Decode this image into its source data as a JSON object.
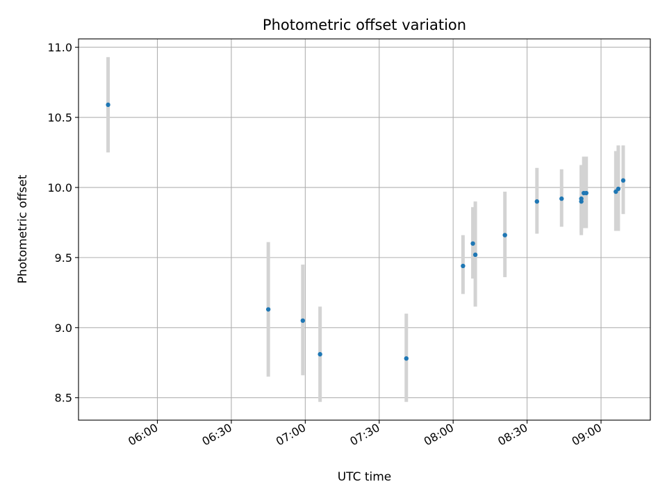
{
  "chart_data": {
    "type": "scatter",
    "title": "Photometric offset variation",
    "xlabel": "UTC time",
    "ylabel": "Photometric offset",
    "x_format": "HH:MM",
    "xlim": [
      "05:28",
      "09:20"
    ],
    "ylim": [
      8.34,
      11.06
    ],
    "x_ticks": [
      "06:00",
      "06:30",
      "07:00",
      "07:30",
      "08:00",
      "08:30",
      "09:00"
    ],
    "y_ticks": [
      "8.5",
      "9.0",
      "9.5",
      "10.0",
      "10.5",
      "11.0"
    ],
    "grid": true,
    "colors": {
      "marker": "#1f77b4",
      "errorbar": "#d3d3d3",
      "grid": "#b0b0b0"
    },
    "points": [
      {
        "t": "05:40",
        "y": 10.59,
        "lo": 10.25,
        "hi": 10.93
      },
      {
        "t": "06:45",
        "y": 9.13,
        "lo": 8.65,
        "hi": 9.61
      },
      {
        "t": "06:59",
        "y": 9.05,
        "lo": 8.66,
        "hi": 9.45
      },
      {
        "t": "07:06",
        "y": 8.81,
        "lo": 8.47,
        "hi": 9.15
      },
      {
        "t": "07:41",
        "y": 8.78,
        "lo": 8.47,
        "hi": 9.1
      },
      {
        "t": "08:04",
        "y": 9.44,
        "lo": 9.24,
        "hi": 9.66
      },
      {
        "t": "08:08",
        "y": 9.6,
        "lo": 9.35,
        "hi": 9.86
      },
      {
        "t": "08:09",
        "y": 9.52,
        "lo": 9.15,
        "hi": 9.9
      },
      {
        "t": "08:21",
        "y": 9.66,
        "lo": 9.36,
        "hi": 9.97
      },
      {
        "t": "08:34",
        "y": 9.9,
        "lo": 9.67,
        "hi": 10.14
      },
      {
        "t": "08:44",
        "y": 9.92,
        "lo": 9.72,
        "hi": 10.13
      },
      {
        "t": "08:52",
        "y": 9.9,
        "lo": 9.66,
        "hi": 10.15
      },
      {
        "t": "08:52",
        "y": 9.92,
        "lo": 9.68,
        "hi": 10.16
      },
      {
        "t": "08:53",
        "y": 9.96,
        "lo": 9.71,
        "hi": 10.22
      },
      {
        "t": "08:54",
        "y": 9.96,
        "lo": 9.71,
        "hi": 10.22
      },
      {
        "t": "09:06",
        "y": 9.97,
        "lo": 9.69,
        "hi": 10.26
      },
      {
        "t": "09:07",
        "y": 9.99,
        "lo": 9.69,
        "hi": 10.3
      },
      {
        "t": "09:09",
        "y": 10.05,
        "lo": 9.81,
        "hi": 10.3
      }
    ]
  }
}
